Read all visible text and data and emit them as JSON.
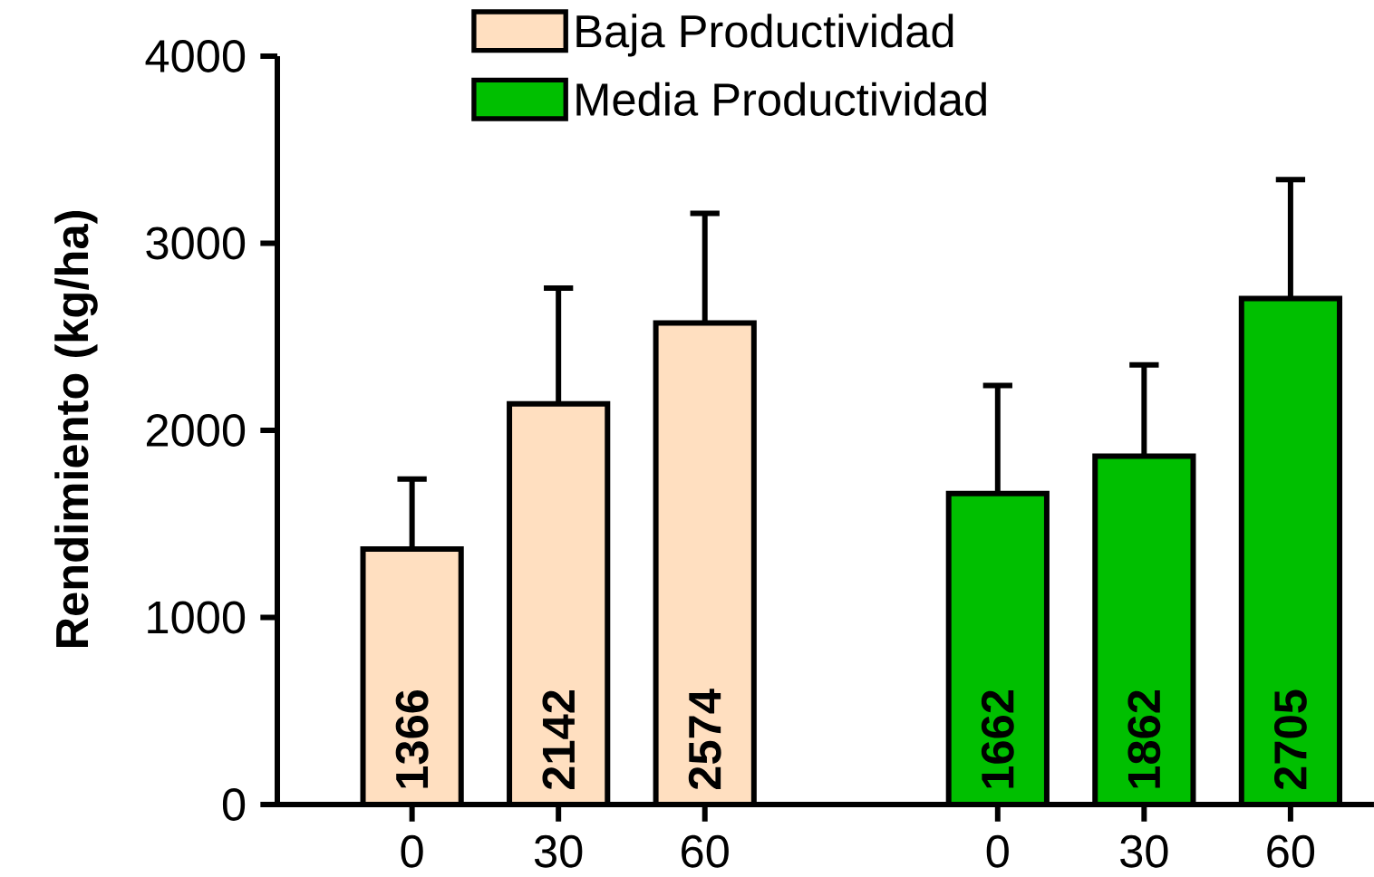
{
  "chart_data": {
    "type": "bar",
    "ylabel": "Rendimiento (kg/ha)",
    "categories": [
      "0",
      "30",
      "60",
      null,
      "0",
      "30",
      "60"
    ],
    "series": [
      {
        "name": "Baja Productividad",
        "color": "#ffdfc0",
        "values": [
          1366,
          2142,
          2574,
          null,
          null,
          null,
          null
        ],
        "errors": [
          [
            1366,
            1740
          ],
          [
            2142,
            2760
          ],
          [
            2574,
            3160
          ],
          null,
          null,
          null,
          null
        ]
      },
      {
        "name": "Media Productividad",
        "color": "#00bf00",
        "values": [
          null,
          null,
          null,
          null,
          1662,
          1862,
          2705
        ],
        "errors": [
          null,
          null,
          null,
          null,
          [
            1662,
            2240
          ],
          [
            1862,
            2350
          ],
          [
            2705,
            3340
          ]
        ]
      }
    ],
    "ylim": [
      0,
      4000
    ],
    "yticks": [
      0,
      1000,
      2000,
      3000,
      4000
    ],
    "data_labels": true,
    "legend": "top"
  }
}
